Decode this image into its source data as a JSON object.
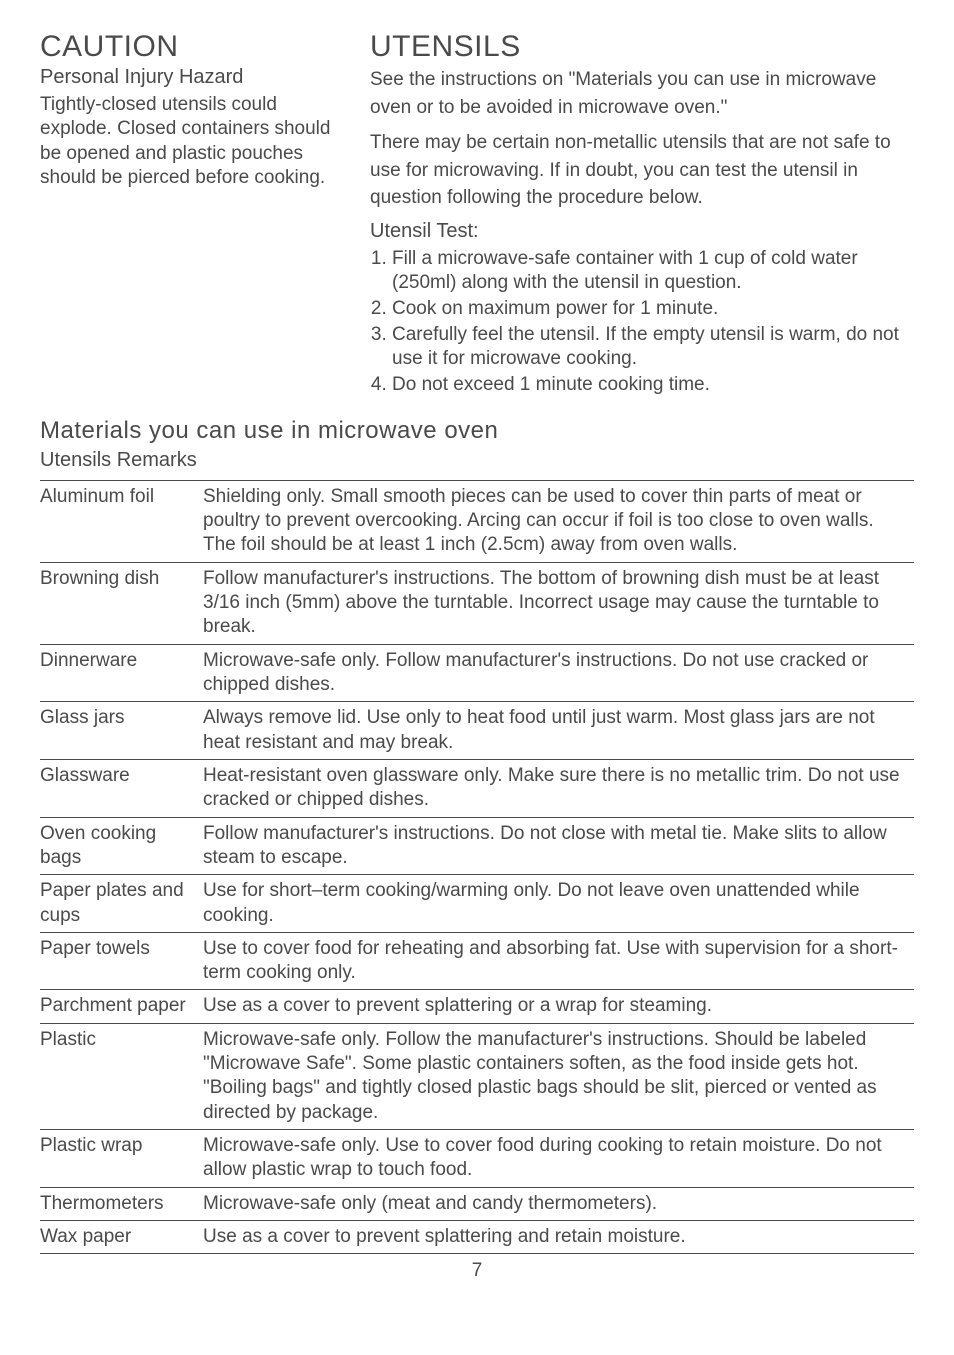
{
  "left": {
    "title": "CAUTION",
    "subhead": "Personal Injury Hazard",
    "para": "Tightly-closed utensils could explode. Closed containers should be opened and plastic pouches should be pierced before cooking."
  },
  "right": {
    "title": "UTENSILS",
    "para1": "See the instructions on \"Materials you can use in microwave oven or to be avoided in microwave oven.\"",
    "para2": "There may be certain non-metallic utensils that are not safe to use for microwaving. If in doubt, you can test the utensil in question following the procedure below.",
    "test_head": "Utensil Test:",
    "test_list": [
      "Fill a microwave-safe container with 1 cup of cold water (250ml) along with the utensil in question.",
      "Cook on maximum power for 1 minute.",
      "Carefully feel the utensil. If the empty utensil is warm, do not use it for  microwave cooking.",
      "Do not exceed 1 minute cooking time."
    ]
  },
  "materials_head": "Materials you can use in microwave oven",
  "remarks_head": "Utensils Remarks",
  "rows": [
    {
      "label": "Aluminum foil",
      "text": "Shielding only. Small smooth pieces can be used to cover thin parts of meat or poultry to prevent overcooking. Arcing can occur if foil is too close to oven walls. The foil should be at least 1 inch (2.5cm) away from oven walls."
    },
    {
      "label": "Browning dish",
      "text": "Follow manufacturer's instructions. The bottom of browning dish must be at least 3/16 inch (5mm) above the turntable. Incorrect usage may cause the turntable to break."
    },
    {
      "label": "Dinnerware",
      "text": "Microwave-safe only. Follow manufacturer's instructions. Do not use cracked or chipped dishes."
    },
    {
      "label": "Glass jars",
      "text": "Always remove lid. Use only to heat food until just warm. Most glass jars are not heat resistant and may break."
    },
    {
      "label": "Glassware",
      "text": "Heat-resistant oven glassware only. Make sure there is no metallic trim. Do not use cracked or chipped dishes."
    },
    {
      "label": "Oven cooking bags",
      "text": "Follow manufacturer's instructions. Do not close with metal tie. Make slits to allow steam to escape."
    },
    {
      "label": "Paper plates and cups",
      "text": "Use for short–term cooking/warming only. Do not leave oven unattended while cooking."
    },
    {
      "label": "Paper towels",
      "text": "Use to cover food for reheating and absorbing fat. Use with supervision for a short-term cooking only."
    },
    {
      "label": "Parchment paper",
      "text": "Use as a cover to prevent splattering or a wrap for steaming."
    },
    {
      "label": "Plastic",
      "text": "Microwave-safe only. Follow the manufacturer's instructions. Should be labeled \"Microwave Safe\". Some plastic containers soften, as the food inside gets hot. \"Boiling bags\" and tightly closed plastic bags should be slit, pierced or vented as directed by package."
    },
    {
      "label": "Plastic wrap",
      "text": "Microwave-safe only. Use to cover food during cooking to retain moisture. Do not allow plastic wrap to touch food."
    },
    {
      "label": "Thermometers",
      "text": "Microwave-safe only (meat and candy thermometers)."
    },
    {
      "label": "Wax paper",
      "text": "Use as a cover to prevent splattering and retain moisture."
    }
  ],
  "page_number": "7"
}
